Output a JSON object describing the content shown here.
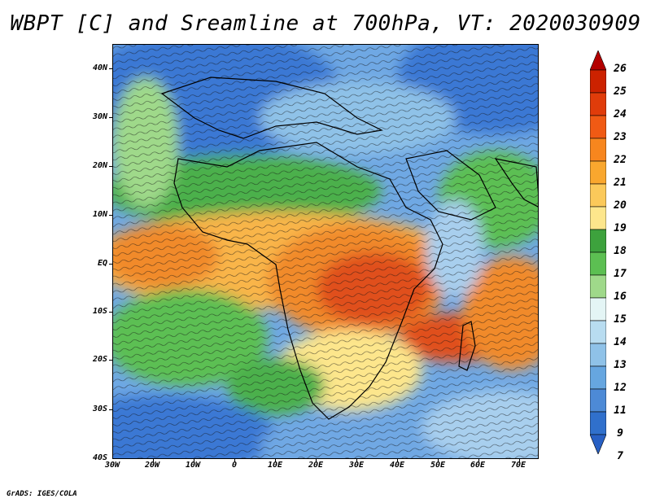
{
  "title": "WBPT [C] and Sreamline at 700hPa, VT: 2020030909",
  "credit": "GrADS: IGES/COLA",
  "lat_labels": [
    "40N",
    "30N",
    "20N",
    "10N",
    "EQ",
    "10S",
    "20S",
    "30S",
    "40S"
  ],
  "lon_labels": [
    "30W",
    "20W",
    "10W",
    "0",
    "10E",
    "20E",
    "30E",
    "40E",
    "50E",
    "60E",
    "70E"
  ],
  "colorbar": {
    "labels": [
      "26",
      "25",
      "24",
      "23",
      "22",
      "21",
      "20",
      "19",
      "18",
      "17",
      "16",
      "15",
      "14",
      "13",
      "12",
      "11",
      "9",
      "7"
    ],
    "colors": [
      "#b30000",
      "#cc2200",
      "#e03c0a",
      "#f05a14",
      "#f7861e",
      "#f9a72e",
      "#fbc95a",
      "#fde68c",
      "#3da23d",
      "#5cbf52",
      "#9fd98a",
      "#e4f5f5",
      "#b8dcf0",
      "#8fc2e8",
      "#66a6e0",
      "#4d8ad6",
      "#3070cc",
      "#2860c4"
    ]
  },
  "field_colors": {
    "cold_deep": "#3a78d4",
    "cold": "#6fa8e4",
    "cool": "#a8cfee",
    "mild": "#e6f6f4",
    "green_light": "#9fd98a",
    "green": "#4cb04c",
    "yellow": "#fde68c",
    "orange_light": "#f9b548",
    "orange": "#f18a2a",
    "red": "#e0501a"
  }
}
